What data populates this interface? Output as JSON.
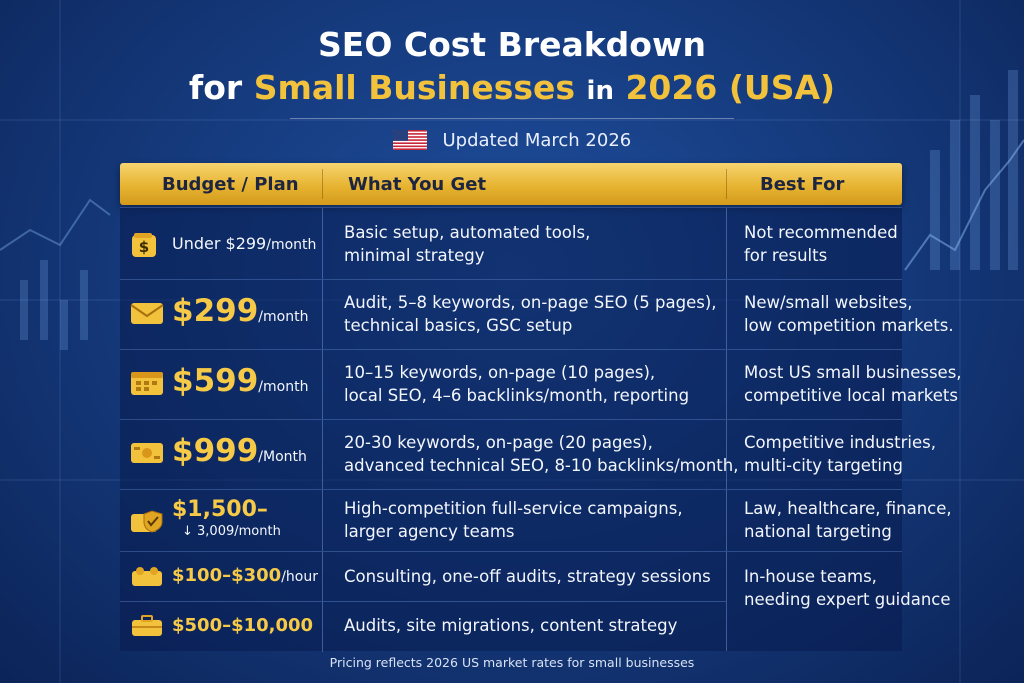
{
  "title": {
    "line1": "SEO Cost Breakdown",
    "line2_prefix": "for",
    "line2_highlight": "Small Businesses",
    "line2_in": "in",
    "line2_year": "2026",
    "line2_suffix": "(USA)"
  },
  "updated": "Updated March 2026",
  "table": {
    "headers": [
      "Budget / Plan",
      "What You Get",
      "Best For"
    ],
    "rows": [
      {
        "price": "Under $299",
        "unit": "/month",
        "icon": "dollar-wallet-icon",
        "features": [
          "Basic setup, automated tools,",
          "minimal strategy"
        ],
        "best_for": [
          "Not recommended",
          "for results"
        ]
      },
      {
        "price": "$299",
        "unit": "/month",
        "icon": "envelope-icon",
        "features": [
          "Audit, 5–8 keywords, on-page SEO (5 pages),",
          "technical basics, GSC setup"
        ],
        "best_for": [
          "New/small websites,",
          "low competition markets."
        ]
      },
      {
        "price": "$599",
        "unit": "/month",
        "icon": "calendar-icon",
        "features": [
          "10–15 keywords, on-page (10 pages),",
          "local SEO, 4–6 backlinks/month, reporting"
        ],
        "best_for": [
          "Most US small businesses,",
          "competitive local markets"
        ]
      },
      {
        "price": "$999",
        "unit": "/Month",
        "icon": "ticket-icon",
        "features": [
          "20-30 keywords, on-page (20 pages),",
          "advanced technical SEO, 8-10 backlinks/month,"
        ],
        "best_for": [
          "Competitive industries,",
          "multi-city targeting"
        ]
      },
      {
        "price": "$1,500–",
        "unit": "3,009/month",
        "icon": "shield-wallet-icon",
        "features": [
          "High-competition full-service campaigns,",
          "larger agency teams"
        ],
        "best_for": [
          "Law, healthcare, finance,",
          "national targeting"
        ]
      },
      {
        "price": "$100–$300",
        "unit": "/hour",
        "icon": "group-icon",
        "features": [
          "Consulting, one-off audits, strategy sessions"
        ],
        "best_for": [
          "In-house teams,",
          "needing expert guidance"
        ]
      },
      {
        "price": "$500–$10,000",
        "unit": "",
        "icon": "briefcase-icon",
        "features": [
          "Audits, site migrations, content strategy"
        ],
        "best_for": []
      }
    ]
  },
  "footer": "Pricing reflects 2026 US market rates for small businesses",
  "colors": {
    "accent_gold": "#f2c23c",
    "background": "#163c80",
    "header_gold": "#e7b431"
  }
}
